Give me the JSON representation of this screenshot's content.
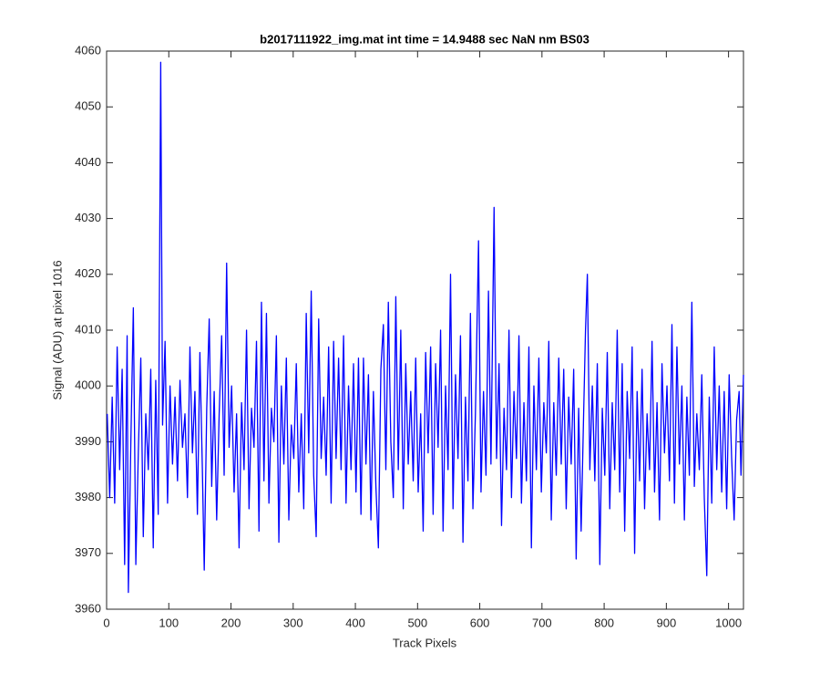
{
  "chart_data": {
    "type": "line",
    "title": "b2017111922_img.mat int time = 14.9488 sec  NaN nm BS03",
    "x_label": "Track Pixels",
    "y_label": "Signal (ADU) at pixel 1016",
    "xlim": [
      0,
      1024
    ],
    "ylim": [
      3960,
      4060
    ],
    "xticks": [
      0,
      100,
      200,
      300,
      400,
      500,
      600,
      700,
      800,
      900,
      1000
    ],
    "yticks": [
      3960,
      3970,
      3980,
      3990,
      4000,
      4010,
      4020,
      4030,
      4040,
      4050,
      4060
    ],
    "x": [
      1,
      5,
      9,
      13,
      17,
      21,
      25,
      29,
      33,
      35,
      39,
      43,
      47,
      51,
      55,
      59,
      63,
      67,
      71,
      75,
      79,
      83,
      87,
      90,
      94,
      98,
      102,
      106,
      110,
      114,
      118,
      122,
      126,
      130,
      134,
      138,
      142,
      146,
      150,
      154,
      157,
      161,
      165,
      169,
      173,
      177,
      181,
      185,
      189,
      193,
      197,
      201,
      205,
      209,
      213,
      217,
      221,
      225,
      229,
      233,
      237,
      241,
      245,
      249,
      253,
      257,
      261,
      265,
      269,
      273,
      277,
      281,
      285,
      289,
      293,
      297,
      301,
      305,
      309,
      313,
      317,
      321,
      325,
      329,
      333,
      337,
      341,
      345,
      349,
      353,
      357,
      361,
      365,
      369,
      373,
      377,
      381,
      385,
      389,
      393,
      397,
      401,
      405,
      409,
      413,
      417,
      421,
      425,
      429,
      433,
      437,
      441,
      445,
      449,
      453,
      457,
      461,
      465,
      469,
      473,
      477,
      481,
      485,
      489,
      493,
      497,
      501,
      505,
      509,
      513,
      517,
      521,
      525,
      529,
      533,
      537,
      541,
      545,
      549,
      553,
      557,
      561,
      565,
      569,
      573,
      577,
      581,
      585,
      589,
      593,
      598,
      602,
      606,
      610,
      614,
      618,
      623,
      627,
      631,
      635,
      639,
      643,
      647,
      651,
      655,
      659,
      663,
      667,
      671,
      675,
      679,
      683,
      687,
      691,
      695,
      699,
      703,
      707,
      711,
      715,
      719,
      723,
      727,
      731,
      735,
      739,
      743,
      747,
      751,
      755,
      759,
      763,
      767,
      770,
      773,
      777,
      781,
      785,
      789,
      793,
      797,
      801,
      805,
      809,
      813,
      817,
      821,
      825,
      829,
      833,
      837,
      841,
      845,
      849,
      853,
      857,
      861,
      865,
      869,
      873,
      877,
      881,
      885,
      889,
      893,
      897,
      901,
      905,
      909,
      913,
      917,
      921,
      925,
      929,
      933,
      937,
      941,
      945,
      949,
      953,
      957,
      961,
      965,
      969,
      973,
      977,
      981,
      985,
      989,
      993,
      997,
      1001,
      1005,
      1009,
      1013,
      1017,
      1020,
      1024
    ],
    "series": [
      {
        "color": "#0000ff",
        "values": [
          3995,
          3980,
          3998,
          3979,
          4007,
          3985,
          4003,
          3968,
          4009,
          3963,
          3990,
          4014,
          3968,
          3988,
          4005,
          3973,
          3995,
          3985,
          4003,
          3971,
          4001,
          3977,
          4058,
          3993,
          4008,
          3979,
          4000,
          3986,
          3998,
          3983,
          4001,
          3989,
          3995,
          3980,
          4007,
          3988,
          3999,
          3977,
          4006,
          3985,
          3967,
          3996,
          4012,
          3982,
          3999,
          3976,
          3995,
          4009,
          3984,
          4022,
          3989,
          4000,
          3981,
          3995,
          3971,
          3997,
          3985,
          4010,
          3978,
          3996,
          3989,
          4008,
          3974,
          4015,
          3983,
          4013,
          3979,
          3996,
          3990,
          4009,
          3972,
          4000,
          3986,
          4005,
          3976,
          3993,
          3987,
          4004,
          3981,
          3995,
          3978,
          4013,
          3988,
          4017,
          3984,
          3973,
          4012,
          3987,
          3998,
          3984,
          4007,
          3979,
          4008,
          3987,
          4005,
          3985,
          4009,
          3979,
          4000,
          3985,
          4004,
          3981,
          4005,
          3977,
          4005,
          3986,
          4002,
          3976,
          3999,
          3982,
          3971,
          4003,
          4011,
          3985,
          4015,
          3990,
          3980,
          4016,
          3985,
          4010,
          3978,
          4004,
          3986,
          3999,
          3983,
          4005,
          3981,
          3995,
          3974,
          4006,
          3988,
          4007,
          3977,
          4004,
          3989,
          4010,
          3974,
          4000,
          3985,
          4020,
          3978,
          4002,
          3987,
          4009,
          3972,
          3998,
          3983,
          4013,
          3978,
          3995,
          4026,
          3981,
          3999,
          3984,
          4017,
          3986,
          4032,
          3987,
          4004,
          3975,
          3996,
          3985,
          4010,
          3980,
          3999,
          3987,
          4009,
          3979,
          3997,
          3983,
          4007,
          3971,
          4000,
          3985,
          4005,
          3981,
          3997,
          3988,
          4008,
          3976,
          3997,
          3984,
          4005,
          3986,
          4003,
          3978,
          3998,
          3986,
          4003,
          3969,
          3996,
          3974,
          3995,
          4010,
          4020,
          3985,
          4000,
          3983,
          4004,
          3968,
          3996,
          3984,
          4006,
          3978,
          3997,
          3985,
          4010,
          3981,
          4004,
          3974,
          3999,
          3987,
          4007,
          3970,
          3999,
          3983,
          4003,
          3978,
          3995,
          3985,
          4008,
          3981,
          3997,
          3976,
          4004,
          3988,
          4000,
          3983,
          4011,
          3979,
          4007,
          3986,
          4000,
          3976,
          3998,
          3984,
          4015,
          3982,
          3995,
          3985,
          4002,
          3980,
          3966,
          3998,
          3979,
          4007,
          3985,
          4000,
          3981,
          3999,
          3978,
          4002,
          3987,
          3976,
          3994,
          3999,
          3984,
          4002
        ]
      }
    ]
  }
}
